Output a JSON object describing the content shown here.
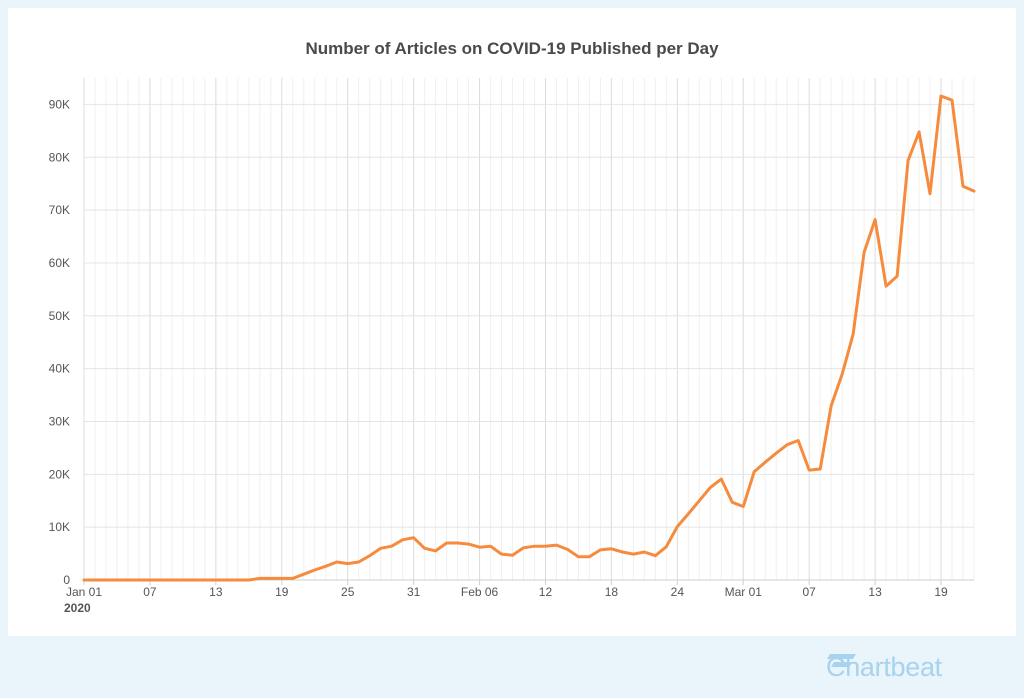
{
  "brand": {
    "name": "Chartbeat",
    "color": "#a7d3ee"
  },
  "chart_data": {
    "type": "line",
    "title": "Number of Articles on COVID-19 Published per Day",
    "xlabel": "",
    "ylabel": "",
    "x_start": "2020-01-01",
    "x_end": "2020-03-22",
    "ylim": [
      0,
      95000
    ],
    "yticks": [
      0,
      10000,
      20000,
      30000,
      40000,
      50000,
      60000,
      70000,
      80000,
      90000
    ],
    "ytick_labels": [
      "0",
      "10K",
      "20K",
      "30K",
      "40K",
      "50K",
      "60K",
      "70K",
      "80K",
      "90K"
    ],
    "xticks": [
      {
        "date": "2020-01-01",
        "label": "Jan 01",
        "sublabel": "2020"
      },
      {
        "date": "2020-01-07",
        "label": "07"
      },
      {
        "date": "2020-01-13",
        "label": "13"
      },
      {
        "date": "2020-01-19",
        "label": "19"
      },
      {
        "date": "2020-01-25",
        "label": "25"
      },
      {
        "date": "2020-01-31",
        "label": "31"
      },
      {
        "date": "2020-02-06",
        "label": "Feb 06"
      },
      {
        "date": "2020-02-12",
        "label": "12"
      },
      {
        "date": "2020-02-18",
        "label": "18"
      },
      {
        "date": "2020-02-24",
        "label": "24"
      },
      {
        "date": "2020-03-01",
        "label": "Mar 01"
      },
      {
        "date": "2020-03-07",
        "label": "07"
      },
      {
        "date": "2020-03-13",
        "label": "13"
      },
      {
        "date": "2020-03-19",
        "label": "19"
      }
    ],
    "grid": true,
    "legend": "none",
    "series": [
      {
        "color": "#f68b3e",
        "points": [
          [
            "2020-01-01",
            0
          ],
          [
            "2020-01-02",
            0
          ],
          [
            "2020-01-03",
            0
          ],
          [
            "2020-01-04",
            0
          ],
          [
            "2020-01-05",
            0
          ],
          [
            "2020-01-06",
            0
          ],
          [
            "2020-01-07",
            0
          ],
          [
            "2020-01-08",
            0
          ],
          [
            "2020-01-09",
            0
          ],
          [
            "2020-01-10",
            0
          ],
          [
            "2020-01-11",
            0
          ],
          [
            "2020-01-12",
            0
          ],
          [
            "2020-01-13",
            0
          ],
          [
            "2020-01-14",
            0
          ],
          [
            "2020-01-15",
            0
          ],
          [
            "2020-01-16",
            0
          ],
          [
            "2020-01-17",
            300
          ],
          [
            "2020-01-18",
            300
          ],
          [
            "2020-01-19",
            300
          ],
          [
            "2020-01-20",
            300
          ],
          [
            "2020-01-21",
            1100
          ],
          [
            "2020-01-22",
            1900
          ],
          [
            "2020-01-23",
            2600
          ],
          [
            "2020-01-24",
            3400
          ],
          [
            "2020-01-25",
            3100
          ],
          [
            "2020-01-26",
            3400
          ],
          [
            "2020-01-27",
            4600
          ],
          [
            "2020-01-28",
            6000
          ],
          [
            "2020-01-29",
            6400
          ],
          [
            "2020-01-30",
            7600
          ],
          [
            "2020-01-31",
            8000
          ],
          [
            "2020-02-01",
            6000
          ],
          [
            "2020-02-02",
            5500
          ],
          [
            "2020-02-03",
            7000
          ],
          [
            "2020-02-04",
            7000
          ],
          [
            "2020-02-05",
            6800
          ],
          [
            "2020-02-06",
            6200
          ],
          [
            "2020-02-07",
            6400
          ],
          [
            "2020-02-08",
            4900
          ],
          [
            "2020-02-09",
            4700
          ],
          [
            "2020-02-10",
            6100
          ],
          [
            "2020-02-11",
            6400
          ],
          [
            "2020-02-12",
            6400
          ],
          [
            "2020-02-13",
            6600
          ],
          [
            "2020-02-14",
            5800
          ],
          [
            "2020-02-15",
            4400
          ],
          [
            "2020-02-16",
            4400
          ],
          [
            "2020-02-17",
            5700
          ],
          [
            "2020-02-18",
            5900
          ],
          [
            "2020-02-19",
            5300
          ],
          [
            "2020-02-20",
            4900
          ],
          [
            "2020-02-21",
            5300
          ],
          [
            "2020-02-22",
            4600
          ],
          [
            "2020-02-23",
            6300
          ],
          [
            "2020-02-24",
            10100
          ],
          [
            "2020-02-25",
            12500
          ],
          [
            "2020-02-26",
            15000
          ],
          [
            "2020-02-27",
            17500
          ],
          [
            "2020-02-28",
            19100
          ],
          [
            "2020-02-29",
            14700
          ],
          [
            "2020-03-01",
            13900
          ],
          [
            "2020-03-02",
            20500
          ],
          [
            "2020-03-03",
            22300
          ],
          [
            "2020-03-04",
            24000
          ],
          [
            "2020-03-05",
            25600
          ],
          [
            "2020-03-06",
            26400
          ],
          [
            "2020-03-07",
            20800
          ],
          [
            "2020-03-08",
            21000
          ],
          [
            "2020-03-09",
            33000
          ],
          [
            "2020-03-10",
            38900
          ],
          [
            "2020-03-11",
            46500
          ],
          [
            "2020-03-12",
            62000
          ],
          [
            "2020-03-13",
            68200
          ],
          [
            "2020-03-14",
            55600
          ],
          [
            "2020-03-15",
            57500
          ],
          [
            "2020-03-16",
            79400
          ],
          [
            "2020-03-17",
            84800
          ],
          [
            "2020-03-18",
            73100
          ],
          [
            "2020-03-19",
            91600
          ],
          [
            "2020-03-20",
            90800
          ],
          [
            "2020-03-21",
            74500
          ],
          [
            "2020-03-22",
            73600
          ]
        ]
      }
    ]
  }
}
